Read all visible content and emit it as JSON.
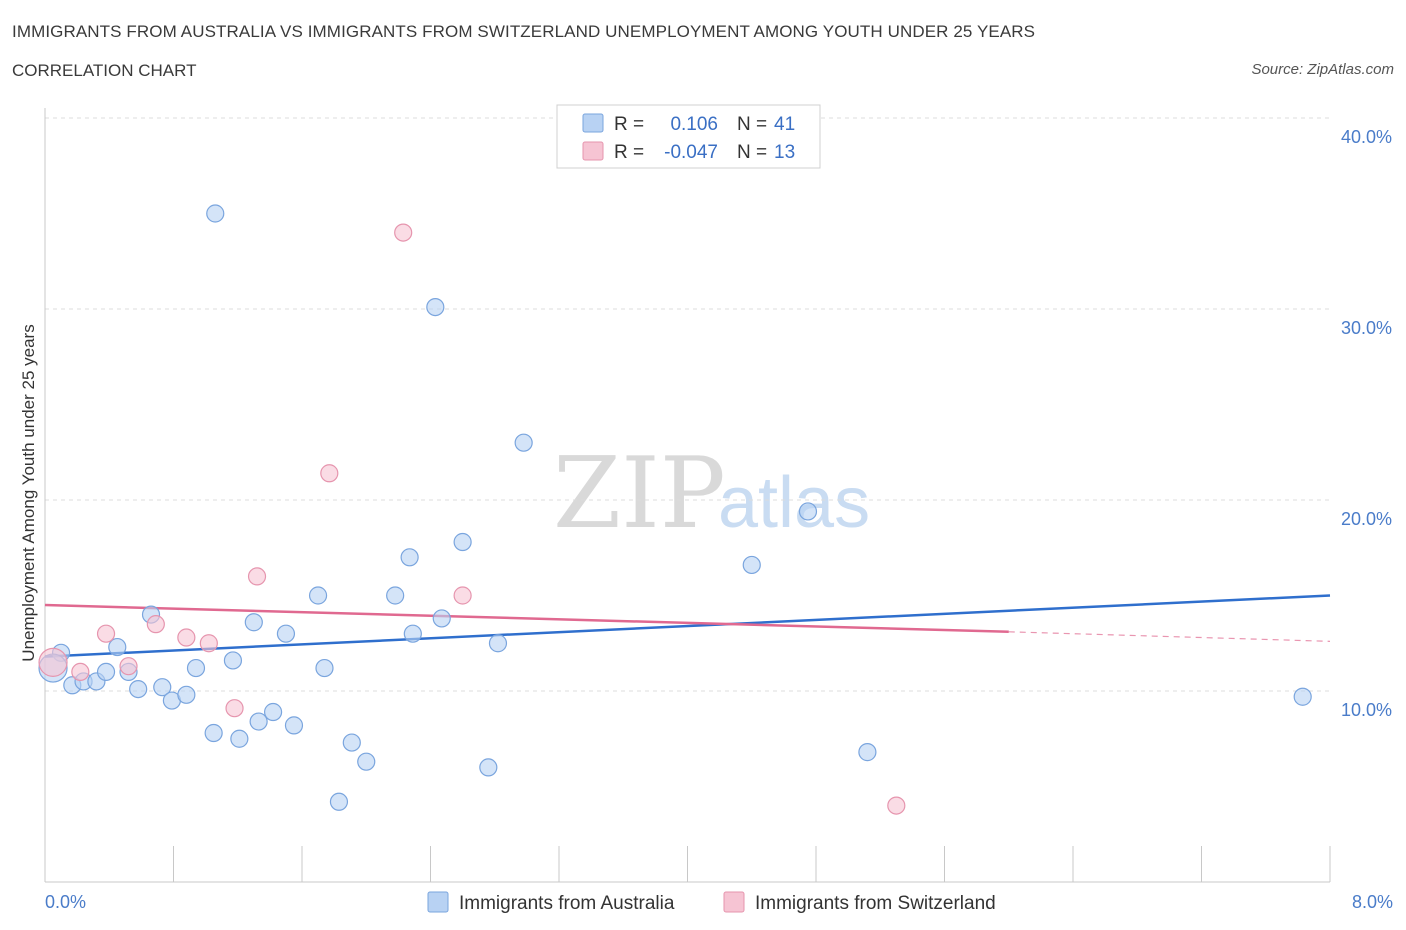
{
  "title": "IMMIGRANTS FROM AUSTRALIA VS IMMIGRANTS FROM SWITZERLAND UNEMPLOYMENT AMONG YOUTH UNDER 25 YEARS",
  "subtitle": "CORRELATION CHART",
  "source": "Source: ZipAtlas.com",
  "watermark": {
    "zip": "ZIP",
    "atlas": "atlas"
  },
  "colors": {
    "australia_fill": "#b8d2f3",
    "australia_stroke": "#7aa5de",
    "australia_line": "#2f6fcd",
    "switzerland_fill": "#f6c4d3",
    "switzerland_stroke": "#e695ae",
    "switzerland_line": "#e06990",
    "grid": "#dcdcdc",
    "tick_text": "#4a7cc9"
  },
  "legend": {
    "rows": [
      {
        "r_label": "R =",
        "r_value": "0.106",
        "n_label": "N =",
        "n_value": "41"
      },
      {
        "r_label": "R =",
        "r_value": "-0.047",
        "n_label": "N =",
        "n_value": "13"
      }
    ]
  },
  "chart_data": {
    "type": "scatter",
    "xlabel": "",
    "ylabel": "Unemployment Among Youth under 25 years",
    "xlim": [
      0.0,
      8.0
    ],
    "ylim": [
      0.0,
      40.0
    ],
    "x_tick_labels": [
      "0.0%",
      "8.0%"
    ],
    "y_ticks": [
      10,
      20,
      30,
      40
    ],
    "y_tick_labels": [
      "10.0%",
      "20.0%",
      "30.0%",
      "40.0%"
    ],
    "grid": true,
    "legend_position": "top-center",
    "series": [
      {
        "name": "Immigrants from Australia",
        "points": [
          [
            0.1,
            12.0
          ],
          [
            0.17,
            10.3
          ],
          [
            0.24,
            10.5
          ],
          [
            0.32,
            10.5
          ],
          [
            0.38,
            11.0
          ],
          [
            0.45,
            12.3
          ],
          [
            0.52,
            11.0
          ],
          [
            0.58,
            10.1
          ],
          [
            0.66,
            14.0
          ],
          [
            0.73,
            10.2
          ],
          [
            0.79,
            9.5
          ],
          [
            0.88,
            9.8
          ],
          [
            0.94,
            11.2
          ],
          [
            1.05,
            7.8
          ],
          [
            1.17,
            11.6
          ],
          [
            1.21,
            7.5
          ],
          [
            1.3,
            13.6
          ],
          [
            1.33,
            8.4
          ],
          [
            1.42,
            8.9
          ],
          [
            1.5,
            13.0
          ],
          [
            1.55,
            8.2
          ],
          [
            1.7,
            15.0
          ],
          [
            1.74,
            11.2
          ],
          [
            1.83,
            4.2
          ],
          [
            1.91,
            7.3
          ],
          [
            2.0,
            6.3
          ],
          [
            2.18,
            15.0
          ],
          [
            2.27,
            17.0
          ],
          [
            2.29,
            13.0
          ],
          [
            2.43,
            30.1
          ],
          [
            2.47,
            13.8
          ],
          [
            2.6,
            17.8
          ],
          [
            2.76,
            6.0
          ],
          [
            2.82,
            12.5
          ],
          [
            2.98,
            23.0
          ],
          [
            4.4,
            16.6
          ],
          [
            4.75,
            19.4
          ],
          [
            5.12,
            6.8
          ],
          [
            7.83,
            9.7
          ],
          [
            1.06,
            35.0
          ],
          [
            0.05,
            11.2
          ]
        ]
      },
      {
        "name": "Immigrants from Switzerland",
        "points": [
          [
            0.05,
            11.5
          ],
          [
            0.22,
            11.0
          ],
          [
            0.38,
            13.0
          ],
          [
            0.52,
            11.3
          ],
          [
            0.69,
            13.5
          ],
          [
            0.88,
            12.8
          ],
          [
            1.02,
            12.5
          ],
          [
            1.18,
            9.1
          ],
          [
            1.32,
            16.0
          ],
          [
            1.77,
            21.4
          ],
          [
            2.23,
            34.0
          ],
          [
            2.6,
            15.0
          ],
          [
            5.3,
            4.0
          ]
        ]
      }
    ],
    "trend_lines": [
      {
        "name": "Immigrants from Australia",
        "x": [
          0.0,
          8.0
        ],
        "y": [
          11.8,
          15.0
        ]
      },
      {
        "name": "Immigrants from Switzerland",
        "x": [
          0.0,
          6.0
        ],
        "y": [
          14.5,
          13.1
        ],
        "dashed_extension": {
          "x": [
            6.0,
            8.0
          ],
          "y": [
            13.1,
            12.6
          ]
        }
      }
    ]
  }
}
